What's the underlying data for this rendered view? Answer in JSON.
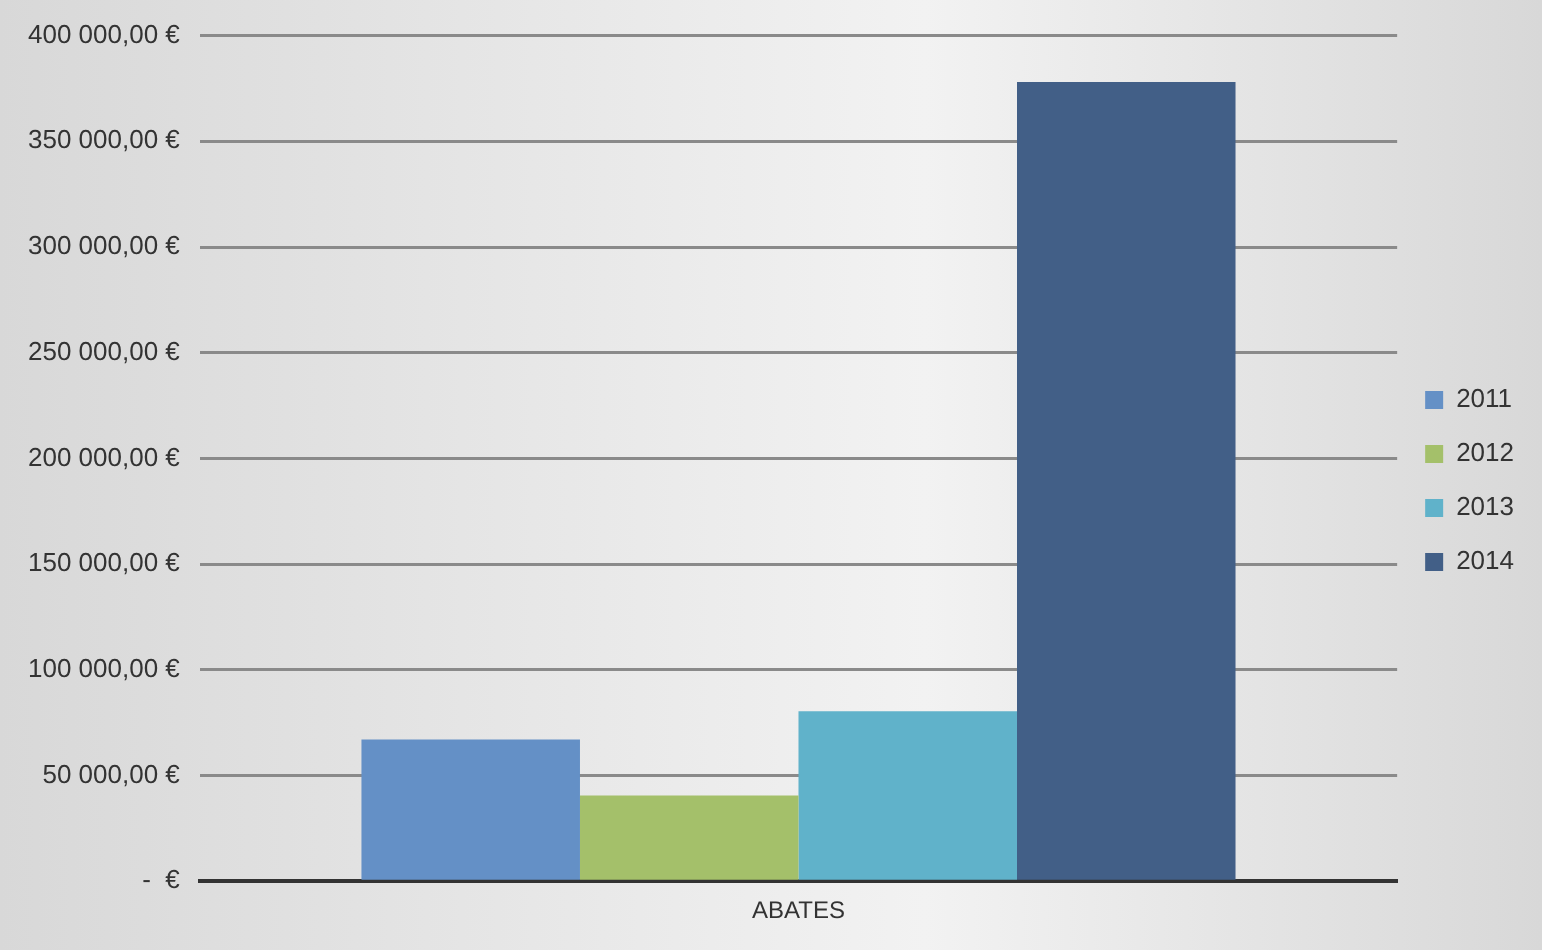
{
  "chart_data": {
    "type": "bar",
    "categories": [
      "ABATES"
    ],
    "series": [
      {
        "name": "2011",
        "color": "#6490c6",
        "values": [
          67000
        ]
      },
      {
        "name": "2012",
        "color": "#a4c06a",
        "values": [
          40500
        ]
      },
      {
        "name": "2013",
        "color": "#60b2ca",
        "values": [
          80400
        ]
      },
      {
        "name": "2014",
        "color": "#425f87",
        "values": [
          378000
        ]
      }
    ],
    "ylim": [
      0,
      400000
    ],
    "yticks": [
      {
        "value": 0,
        "label": "-  €"
      },
      {
        "value": 50000,
        "label": "50 000,00 €"
      },
      {
        "value": 100000,
        "label": "100 000,00 €"
      },
      {
        "value": 150000,
        "label": "150 000,00 €"
      },
      {
        "value": 200000,
        "label": "200 000,00 €"
      },
      {
        "value": 250000,
        "label": "250 000,00 €"
      },
      {
        "value": 300000,
        "label": "300 000,00 €"
      },
      {
        "value": 350000,
        "label": "350 000,00 €"
      },
      {
        "value": 400000,
        "label": "400 000,00 €"
      }
    ],
    "grid": "y",
    "legend": "right"
  }
}
